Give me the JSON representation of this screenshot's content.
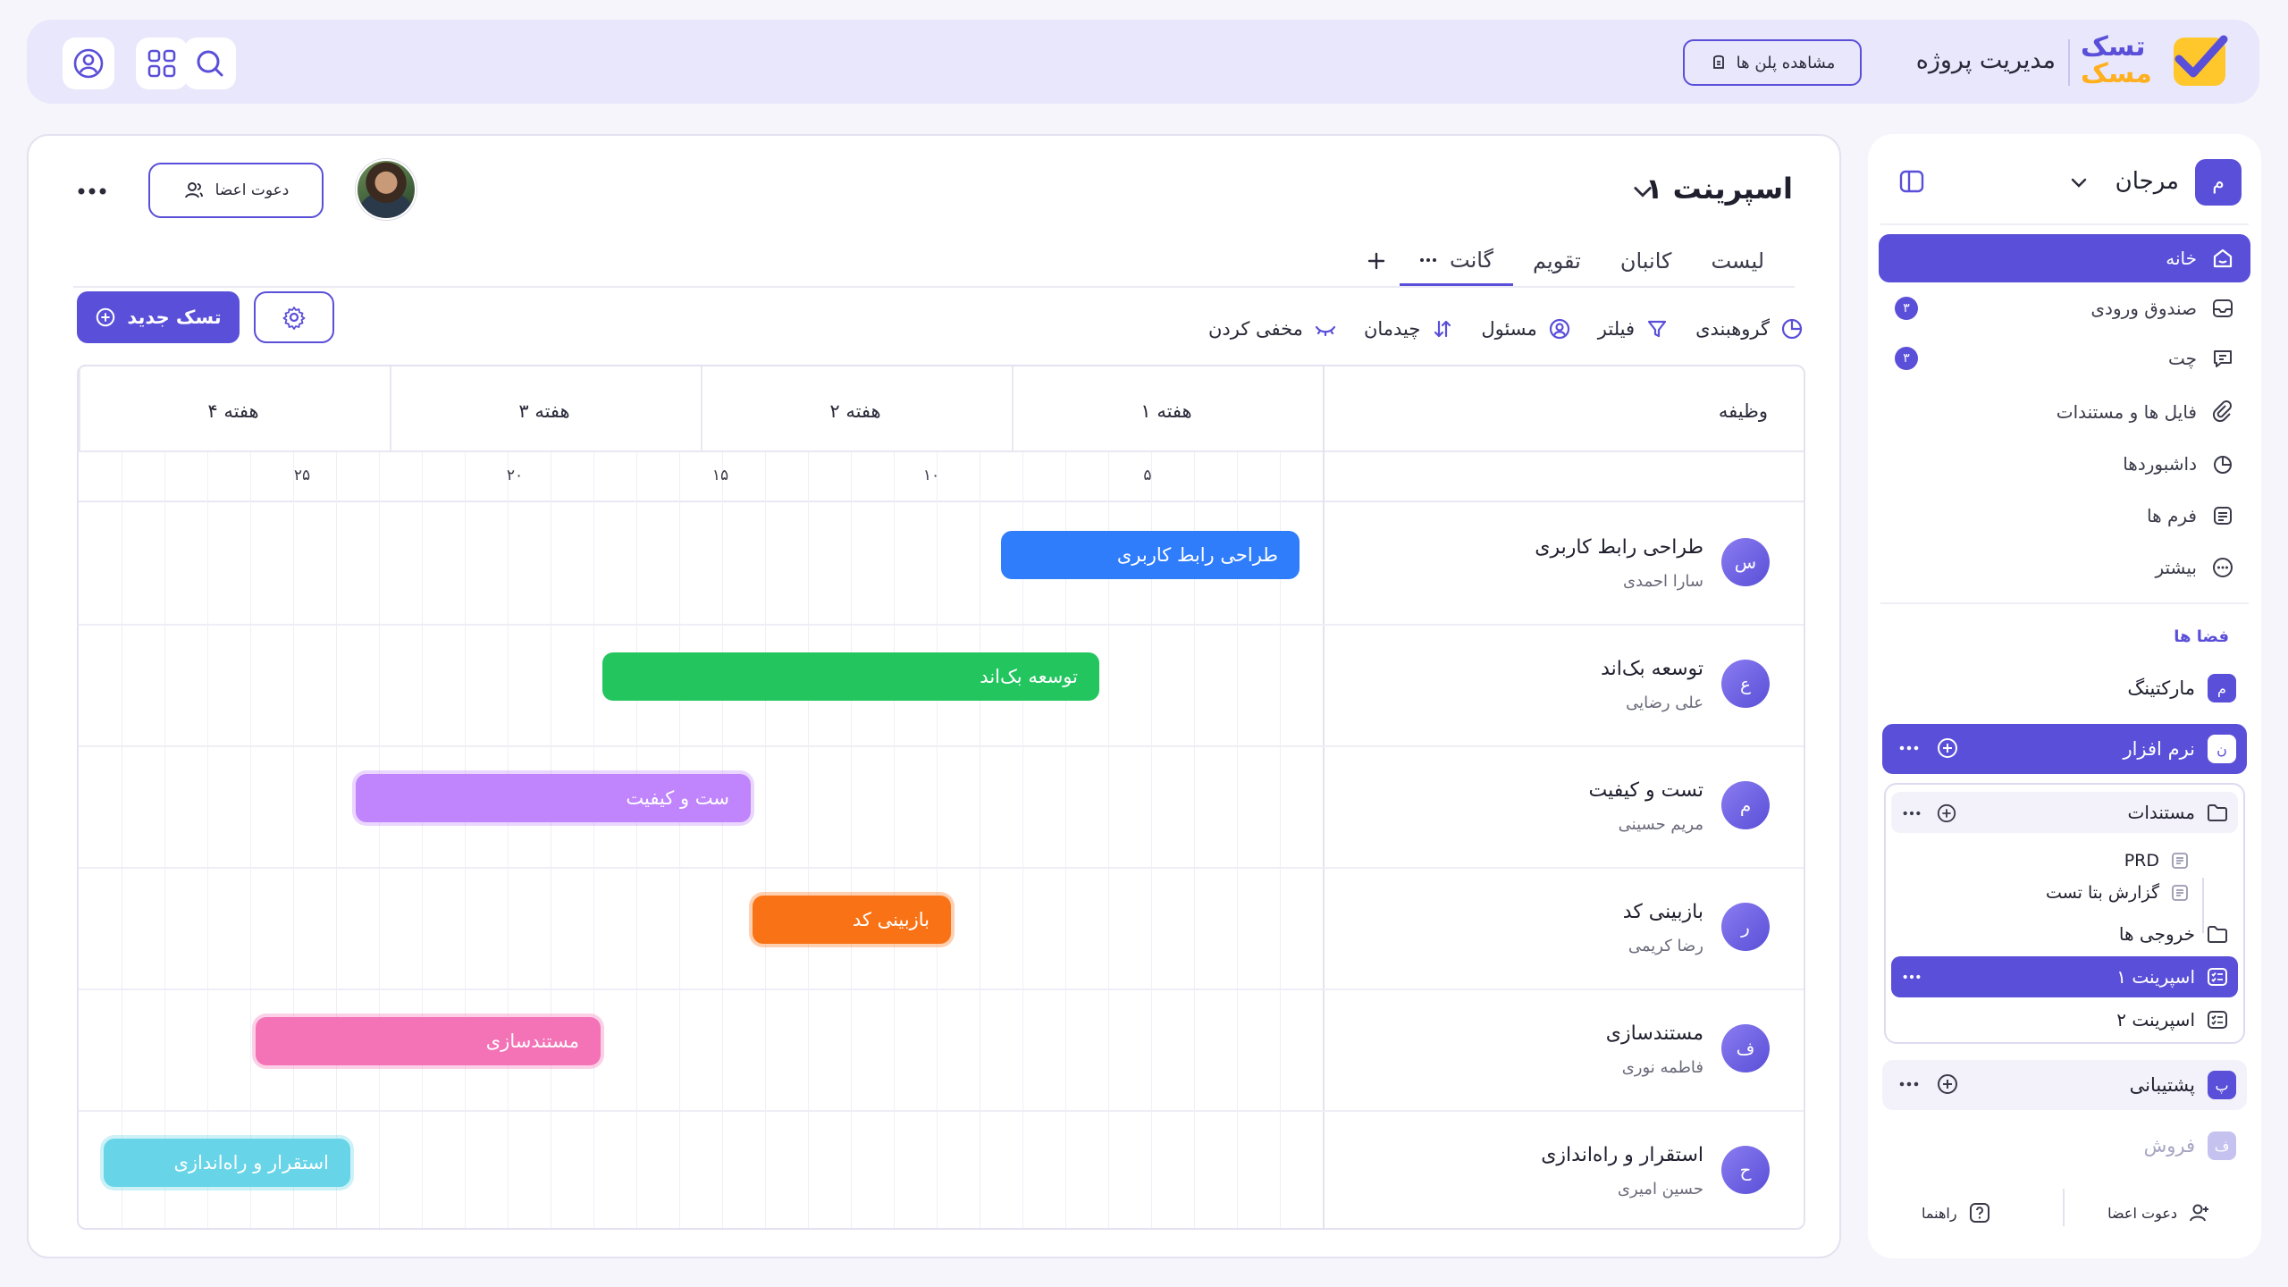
{
  "header": {
    "logo_line1": "تسک",
    "logo_line2": "مسک",
    "app_title": "مدیریت پروژه",
    "view_plans_label": "مشاهده پلن ها"
  },
  "sidebar": {
    "workspace_initial": "م",
    "workspace_name": "مرجان",
    "nav": [
      {
        "label": "خانه",
        "icon": "home-icon",
        "active": true
      },
      {
        "label": "صندوق ورودی",
        "icon": "inbox-icon",
        "count": "۳"
      },
      {
        "label": "چت",
        "icon": "chat-icon",
        "count": "۳"
      },
      {
        "label": "فایل ها و مستندات",
        "icon": "files-icon"
      },
      {
        "label": "داشبوردها",
        "icon": "dashboard-icon"
      },
      {
        "label": "فرم ها",
        "icon": "forms-icon"
      },
      {
        "label": "بیشتر",
        "icon": "more-circle-icon"
      }
    ],
    "spaces_title": "فضا ها",
    "spaces": [
      {
        "initial": "م",
        "label": "مارکتینگ"
      },
      {
        "initial": "ن",
        "label": "نرم افزار",
        "active": true
      },
      {
        "initial": "پ",
        "label": "پشتیبانی"
      },
      {
        "initial": "ف",
        "label": "فروش",
        "muted": true
      }
    ],
    "folder": {
      "label": "مستندات",
      "docs": [
        "PRD",
        "گزارش بتا تست"
      ],
      "items": [
        {
          "label": "خروجی ها",
          "icon": "folder-icon"
        },
        {
          "label": "اسپرینت ۱",
          "icon": "list-icon",
          "active": true
        },
        {
          "label": "اسپرینت ۲",
          "icon": "list-icon"
        }
      ]
    },
    "footer": {
      "invite": "دعوت اعضا",
      "guide": "راهنما"
    }
  },
  "main": {
    "title": "اسپرینت ۱",
    "invite_label": "دعوت اعضا",
    "tabs": [
      "لیست",
      "کانبان",
      "تقویم",
      "گانت"
    ],
    "active_tab": "گانت",
    "toolbar": [
      "گروهبندی",
      "فیلتر",
      "مسئول",
      "چیدمان",
      "مخفی کردن"
    ],
    "new_task_label": "تسک جدید"
  },
  "gantt": {
    "task_column": "وظیفه",
    "weeks": [
      "هفته ۱",
      "هفته ۲",
      "هفته ۳",
      "هفته ۴"
    ],
    "day_labels": [
      "۵",
      "۱۰",
      "۱۵",
      "۲۰",
      "۲۵"
    ],
    "tasks": [
      {
        "avatar": "س",
        "name": "طراحی رابط کاربری",
        "owner": "سارا احمدی",
        "color": "#2f7dfb",
        "bar_text": "طراحی رابط کاربری"
      },
      {
        "avatar": "ع",
        "name": "توسعه بک‌اند",
        "owner": "علی رضایی",
        "color": "#22c55e",
        "bar_text": "توسعه بک‌اند"
      },
      {
        "avatar": "م",
        "name": "تست و کیفیت",
        "owner": "مریم حسینی",
        "color": "#c084fc",
        "bar_text": "ست و کیفیت"
      },
      {
        "avatar": "ر",
        "name": "بازبینی کد",
        "owner": "رضا کریمی",
        "color": "#f97316",
        "bar_text": "بازبینی کد"
      },
      {
        "avatar": "ف",
        "name": "مستندسازی",
        "owner": "فاطمه نوری",
        "color": "#f472b6",
        "bar_text": "مستندسازی"
      },
      {
        "avatar": "ح",
        "name": "استقرار و راه‌اندازی",
        "owner": "حسین امیری",
        "color": "#67d4e8",
        "bar_text": "استقرار و راه‌اندازی"
      }
    ]
  }
}
